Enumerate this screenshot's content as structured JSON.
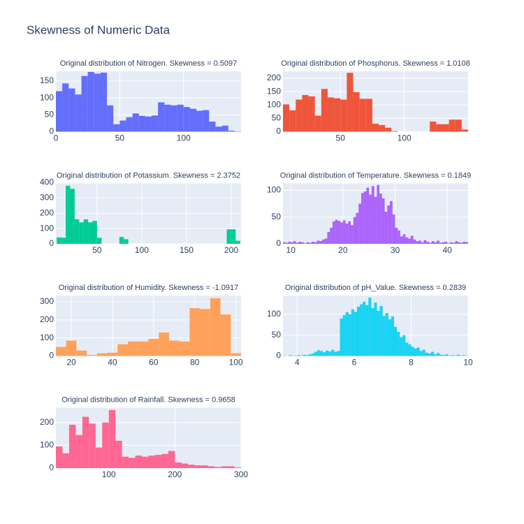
{
  "title": "Skewness of Numeric Data",
  "chart_data": [
    {
      "type": "histogram",
      "title": "Original distribution of Nitrogen. Skewness = 0.5097",
      "color": "#636efa",
      "bins": [
        0,
        5,
        10,
        15,
        20,
        25,
        30,
        35,
        40,
        45,
        50,
        55,
        60,
        65,
        70,
        75,
        80,
        85,
        90,
        95,
        100,
        105,
        110,
        115,
        120,
        125,
        130,
        135,
        140,
        145
      ],
      "counts": [
        120,
        143,
        128,
        110,
        165,
        177,
        172,
        175,
        78,
        22,
        33,
        43,
        54,
        47,
        45,
        48,
        87,
        80,
        78,
        80,
        73,
        68,
        62,
        64,
        30,
        15,
        18,
        3,
        1
      ],
      "xlim": [
        0,
        145
      ],
      "ylim": [
        0,
        179
      ],
      "xticks": [
        0,
        50,
        100
      ],
      "yticks": [
        0,
        50,
        100,
        150
      ]
    },
    {
      "type": "histogram",
      "title": "Original distribution of Phosphorus. Skewness = 1.0108",
      "color": "#EF553B",
      "bins": [
        5,
        10,
        15,
        20,
        25,
        30,
        35,
        40,
        45,
        50,
        55,
        60,
        65,
        70,
        75,
        80,
        85,
        90,
        95,
        100,
        105,
        110,
        115,
        120,
        125,
        130,
        135,
        140,
        145,
        150
      ],
      "counts": [
        102,
        80,
        120,
        137,
        132,
        60,
        160,
        128,
        125,
        120,
        220,
        148,
        123,
        123,
        30,
        25,
        15,
        2,
        0,
        0,
        0,
        0,
        0,
        38,
        28,
        28,
        45,
        45,
        8
      ],
      "xlim": [
        5,
        150
      ],
      "ylim": [
        0,
        226
      ],
      "xticks": [
        50,
        100
      ],
      "yticks": [
        0,
        50,
        100,
        150,
        200
      ]
    },
    {
      "type": "histogram",
      "title": "Original distribution of Potassium. Skewness = 2.3752",
      "color": "#00cc96",
      "bins": [
        5,
        10,
        15,
        20,
        25,
        30,
        35,
        40,
        45,
        50,
        55,
        60,
        65,
        70,
        75,
        80,
        85,
        90,
        95,
        100,
        105,
        110,
        115,
        120,
        125,
        130,
        135,
        140,
        145,
        150,
        155,
        160,
        165,
        170,
        175,
        180,
        185,
        190,
        195,
        200,
        205,
        210
      ],
      "counts": [
        42,
        40,
        380,
        360,
        160,
        140,
        160,
        140,
        150,
        40,
        0,
        0,
        0,
        0,
        45,
        30,
        0,
        0,
        0,
        0,
        0,
        0,
        0,
        0,
        0,
        0,
        0,
        0,
        0,
        0,
        0,
        0,
        0,
        0,
        0,
        0,
        0,
        0,
        95,
        95,
        20
      ],
      "xlim": [
        4,
        211
      ],
      "ylim": [
        0,
        395
      ],
      "xticks": [
        50,
        100,
        150,
        200
      ],
      "yticks": [
        0,
        100,
        200,
        300,
        400
      ]
    },
    {
      "type": "histogram",
      "title": "Original distribution of Temperature. Skewness = 0.1849",
      "color": "#ab63fa",
      "bins": [
        8.5,
        9,
        9.5,
        10,
        10.5,
        11,
        11.5,
        12,
        12.5,
        13,
        13.5,
        14,
        14.5,
        15,
        15.5,
        16,
        16.5,
        17,
        17.5,
        18,
        18.5,
        19,
        19.5,
        20,
        20.5,
        21,
        21.5,
        22,
        22.5,
        23,
        23.5,
        24,
        24.5,
        25,
        25.5,
        26,
        26.5,
        27,
        27.5,
        28,
        28.5,
        29,
        29.5,
        30,
        30.5,
        31,
        31.5,
        32,
        32.5,
        33,
        33.5,
        34,
        34.5,
        35,
        35.5,
        36,
        36.5,
        37,
        37.5,
        38,
        38.5,
        39,
        39.5,
        40,
        40.5,
        41,
        41.5,
        42,
        42.5,
        43,
        43.5,
        44
      ],
      "counts": [
        3,
        2,
        4,
        3,
        5,
        2,
        4,
        3,
        1,
        3,
        2,
        4,
        3,
        6,
        5,
        8,
        10,
        22,
        30,
        42,
        45,
        43,
        40,
        44,
        38,
        42,
        35,
        50,
        58,
        75,
        95,
        98,
        105,
        92,
        108,
        88,
        110,
        94,
        85,
        60,
        72,
        80,
        55,
        30,
        25,
        14,
        18,
        12,
        10,
        15,
        8,
        5,
        6,
        3,
        7,
        4,
        2,
        5,
        3,
        6,
        2,
        3,
        4,
        1,
        3,
        2,
        5,
        3,
        2,
        4,
        3
      ],
      "xlim": [
        8.5,
        44
      ],
      "ylim": [
        0,
        113
      ],
      "xticks": [
        10,
        20,
        30,
        40
      ],
      "yticks": [
        0,
        50,
        100
      ]
    },
    {
      "type": "histogram",
      "title": "Original distribution of Humidity. Skewness = -1.0917",
      "color": "#FFA15A",
      "bins": [
        12.5,
        17.5,
        22.5,
        27.5,
        32.5,
        37.5,
        42.5,
        47.5,
        52.5,
        57.5,
        62.5,
        67.5,
        72.5,
        77.5,
        82.5,
        87.5,
        92.5,
        97.5,
        102.5
      ],
      "counts": [
        50,
        85,
        30,
        5,
        15,
        18,
        65,
        80,
        80,
        95,
        130,
        85,
        80,
        265,
        260,
        320,
        230,
        15
      ],
      "xlim": [
        12.5,
        102.5
      ],
      "ylim": [
        0,
        335
      ],
      "xticks": [
        20,
        40,
        60,
        80,
        100
      ],
      "yticks": [
        0,
        100,
        200,
        300
      ]
    },
    {
      "type": "histogram",
      "title": "Original distribution of pH_Value. Skewness = 0.2839",
      "color": "#19d3f3",
      "bins": [
        3.5,
        3.6,
        3.7,
        3.8,
        3.9,
        4.0,
        4.1,
        4.2,
        4.3,
        4.4,
        4.5,
        4.6,
        4.7,
        4.8,
        4.9,
        5.0,
        5.1,
        5.2,
        5.3,
        5.4,
        5.5,
        5.6,
        5.7,
        5.8,
        5.9,
        6.0,
        6.1,
        6.2,
        6.3,
        6.4,
        6.5,
        6.6,
        6.7,
        6.8,
        6.9,
        7.0,
        7.1,
        7.2,
        7.3,
        7.4,
        7.5,
        7.6,
        7.7,
        7.8,
        7.9,
        8.0,
        8.1,
        8.2,
        8.3,
        8.4,
        8.5,
        8.6,
        8.7,
        8.8,
        8.9,
        9.0,
        9.1,
        9.2,
        9.3,
        9.4,
        9.5,
        9.6,
        9.7,
        9.8,
        9.9,
        10.0
      ],
      "counts": [
        1,
        0,
        2,
        1,
        1,
        2,
        1,
        3,
        2,
        4,
        6,
        10,
        14,
        12,
        9,
        13,
        11,
        15,
        10,
        12,
        90,
        98,
        105,
        100,
        112,
        106,
        118,
        124,
        130,
        122,
        140,
        115,
        128,
        108,
        120,
        96,
        103,
        88,
        95,
        70,
        58,
        45,
        50,
        32,
        28,
        22,
        18,
        20,
        12,
        15,
        8,
        6,
        10,
        4,
        7,
        3,
        2,
        4,
        1,
        2,
        1,
        3,
        1,
        2,
        1
      ],
      "xlim": [
        3.5,
        10
      ],
      "ylim": [
        0,
        145
      ],
      "xticks": [
        4,
        6,
        8,
        10
      ],
      "yticks": [
        0,
        50,
        100
      ]
    },
    {
      "type": "histogram",
      "title": "Original distribution of Rainfall. Skewness = 0.9658",
      "color": "#FF6692",
      "bins": [
        20,
        30,
        40,
        50,
        60,
        70,
        80,
        90,
        100,
        110,
        120,
        130,
        140,
        150,
        160,
        170,
        180,
        190,
        200,
        210,
        220,
        230,
        240,
        250,
        260,
        270,
        280,
        290,
        300
      ],
      "counts": [
        95,
        65,
        190,
        145,
        225,
        195,
        90,
        200,
        255,
        120,
        50,
        45,
        55,
        50,
        55,
        58,
        62,
        75,
        25,
        20,
        15,
        12,
        12,
        8,
        5,
        8,
        8,
        3
      ],
      "xlim": [
        20,
        300
      ],
      "ylim": [
        0,
        265
      ],
      "xticks": [
        100,
        200,
        300
      ],
      "yticks": [
        0,
        100,
        200
      ]
    }
  ]
}
